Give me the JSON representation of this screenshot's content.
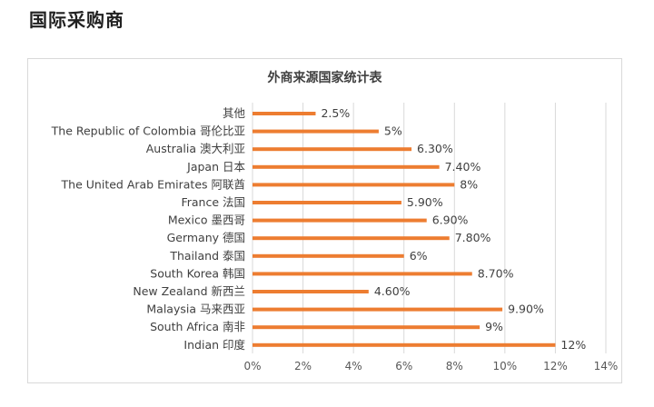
{
  "header": {
    "title": "国际采购商"
  },
  "chart_data": {
    "type": "bar",
    "orientation": "horizontal",
    "title": "外商来源国家统计表",
    "categories": [
      "其他",
      "The Republic of Colombia 哥伦比亚",
      "Australia 澳大利亚",
      "Japan 日本",
      "The United Arab Emirates 阿联酋",
      "France 法国",
      "Mexico 墨西哥",
      "Germany 德国",
      "Thailand 泰国",
      "South Korea 韩国",
      "New Zealand 新西兰",
      "Malaysia 马来西亚",
      "South Africa 南非",
      "Indian 印度"
    ],
    "values": [
      2.5,
      5,
      6.3,
      7.4,
      8,
      5.9,
      6.9,
      7.8,
      6,
      8.7,
      4.6,
      9.9,
      9,
      12
    ],
    "data_labels": [
      "2.5%",
      "5%",
      "6.30%",
      "7.40%",
      "8%",
      "5.90%",
      "6.90%",
      "7.80%",
      "6%",
      "8.70%",
      "4.60%",
      "9.90%",
      "9%",
      "12%"
    ],
    "x_ticks": [
      "0%",
      "2%",
      "4%",
      "6%",
      "8%",
      "10%",
      "12%",
      "14%"
    ],
    "xlim": [
      0,
      14
    ],
    "grid": true,
    "bar_color": "#ED7D31",
    "grid_color": "#d9d9d9"
  }
}
